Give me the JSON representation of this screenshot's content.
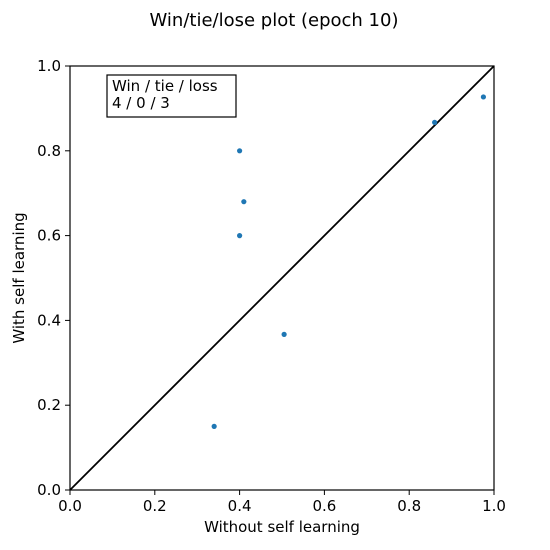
{
  "chart_data": {
    "type": "scatter",
    "title": "Win/tie/lose plot (epoch 10)",
    "xlabel": "Without self learning",
    "ylabel": "With self learning",
    "xlim": [
      0.0,
      1.0
    ],
    "ylim": [
      0.0,
      1.0
    ],
    "xticks": [
      "0.0",
      "0.2",
      "0.4",
      "0.6",
      "0.8",
      "1.0"
    ],
    "yticks": [
      "0.0",
      "0.2",
      "0.4",
      "0.6",
      "0.8",
      "1.0"
    ],
    "grid": false,
    "diagonal_line": {
      "from": [
        0.0,
        0.0
      ],
      "to": [
        1.0,
        1.0
      ],
      "color": "#000000"
    },
    "point_color": "#1f77b4",
    "points": [
      {
        "x": 0.4,
        "y": 0.8
      },
      {
        "x": 0.41,
        "y": 0.68
      },
      {
        "x": 0.4,
        "y": 0.6
      },
      {
        "x": 0.505,
        "y": 0.367
      },
      {
        "x": 0.34,
        "y": 0.15
      },
      {
        "x": 0.86,
        "y": 0.867
      },
      {
        "x": 0.975,
        "y": 0.927
      }
    ],
    "annotation": {
      "line1": "Win / tie / loss",
      "line2": "4 / 0 / 3"
    }
  }
}
